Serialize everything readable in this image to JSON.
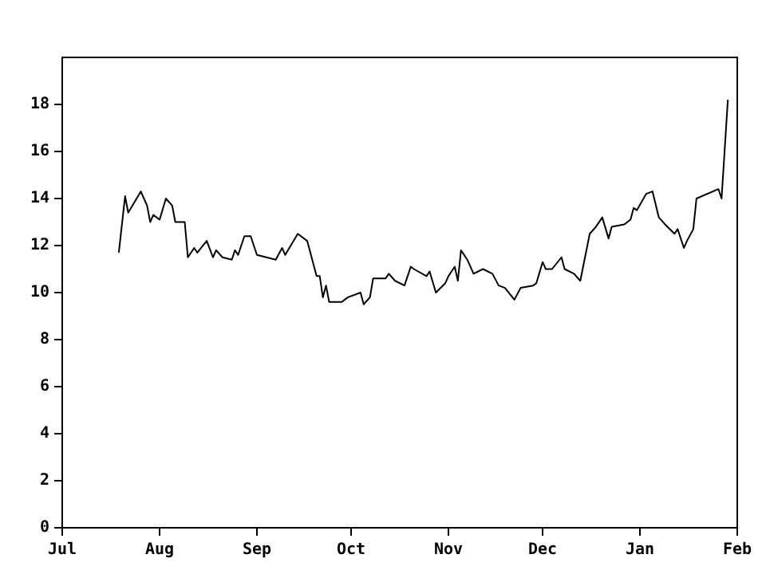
{
  "chart_data": {
    "type": "line",
    "categories": [
      "Jul",
      null,
      null,
      null,
      null,
      null,
      null,
      null,
      null,
      null,
      null,
      null,
      null,
      null,
      null,
      null,
      null,
      null,
      null,
      null,
      null,
      null,
      null,
      null,
      null,
      null,
      null,
      null,
      null,
      null,
      null,
      "Aug",
      null,
      null,
      null,
      null,
      null,
      null,
      null,
      null,
      null,
      null,
      null,
      null,
      null,
      null,
      null,
      null,
      null,
      null,
      null,
      null,
      null,
      null,
      null,
      null,
      null,
      null,
      null,
      null,
      null,
      null,
      "Sep",
      null,
      null,
      null,
      null,
      null,
      null,
      null,
      null,
      null,
      null,
      null,
      null,
      null,
      null,
      null,
      null,
      null,
      null,
      null,
      null,
      null,
      null,
      null,
      null,
      null,
      null,
      null,
      null,
      null,
      "Oct",
      null,
      null,
      null,
      null,
      null,
      null,
      null,
      null,
      null,
      null,
      null,
      null,
      null,
      null,
      null,
      null,
      null,
      null,
      null,
      null,
      null,
      null,
      null,
      null,
      null,
      null,
      null,
      null,
      null,
      null,
      "Nov",
      null,
      null,
      null,
      null,
      null,
      null,
      null,
      null,
      null,
      null,
      null,
      null,
      null,
      null,
      null,
      null,
      null,
      null,
      null,
      null,
      null,
      null,
      null,
      null,
      null,
      null,
      null,
      null,
      null,
      "Dec",
      null,
      null,
      null,
      null,
      null,
      null,
      null,
      null,
      null,
      null,
      null,
      null,
      null,
      null,
      null,
      null,
      null,
      null,
      null,
      null,
      null,
      null,
      null,
      null,
      null,
      null,
      null,
      null,
      null,
      null,
      "Jan",
      null,
      null,
      null,
      null,
      null,
      null,
      null,
      null,
      null,
      null,
      null,
      null,
      null,
      null,
      null,
      null,
      null,
      null,
      null,
      null,
      null,
      null,
      null,
      null,
      null,
      null,
      null,
      null,
      null,
      null,
      "Feb"
    ],
    "series": [
      {
        "color": "#000000",
        "values": [
          null,
          null,
          null,
          null,
          null,
          null,
          null,
          null,
          null,
          null,
          null,
          null,
          null,
          null,
          null,
          null,
          null,
          null,
          11.7,
          null,
          14.1,
          13.4,
          null,
          null,
          null,
          14.3,
          null,
          13.7,
          13.0,
          13.3,
          null,
          13.1,
          null,
          14.0,
          null,
          13.7,
          13.0,
          null,
          null,
          13.0,
          11.5,
          null,
          11.9,
          11.7,
          null,
          null,
          12.2,
          null,
          11.5,
          11.8,
          null,
          11.5,
          null,
          null,
          11.4,
          11.8,
          11.6,
          null,
          12.4,
          null,
          12.4,
          null,
          11.6,
          null,
          null,
          null,
          null,
          null,
          11.4,
          null,
          11.9,
          11.6,
          null,
          null,
          null,
          12.5,
          null,
          null,
          12.2,
          null,
          null,
          10.7,
          10.7,
          9.8,
          10.3,
          9.6,
          null,
          null,
          null,
          9.6,
          null,
          9.8,
          null,
          null,
          null,
          10.0,
          9.5,
          null,
          9.8,
          10.6,
          null,
          null,
          null,
          10.6,
          10.8,
          null,
          10.5,
          null,
          null,
          10.3,
          null,
          11.1,
          11.0,
          null,
          null,
          null,
          10.7,
          10.9,
          null,
          10.0,
          null,
          null,
          10.4,
          10.7,
          null,
          11.1,
          10.5,
          11.8,
          null,
          11.4,
          null,
          10.8,
          null,
          null,
          11.0,
          null,
          null,
          10.8,
          null,
          10.3,
          null,
          10.2,
          null,
          null,
          9.7,
          null,
          10.2,
          null,
          null,
          null,
          10.3,
          10.4,
          null,
          11.3,
          11.0,
          null,
          11.0,
          null,
          null,
          11.5,
          11.0,
          null,
          null,
          10.8,
          null,
          10.5,
          null,
          null,
          12.5,
          null,
          12.8,
          null,
          13.2,
          null,
          12.3,
          12.8,
          null,
          null,
          null,
          12.9,
          null,
          13.1,
          13.6,
          13.5,
          null,
          null,
          14.2,
          null,
          14.3,
          null,
          13.2,
          null,
          12.9,
          null,
          null,
          12.5,
          12.7,
          null,
          11.9,
          12.2,
          null,
          12.7,
          14.0,
          null,
          null,
          null,
          null,
          null,
          null,
          14.4,
          14.0,
          null,
          18.2,
          null,
          null,
          null
        ]
      }
    ],
    "ylim": [
      0,
      20
    ],
    "yticks": [
      0,
      2,
      4,
      6,
      8,
      10,
      12,
      14,
      16,
      18
    ],
    "grid": false,
    "legend": false,
    "marker": "none",
    "line_style": "solid"
  }
}
